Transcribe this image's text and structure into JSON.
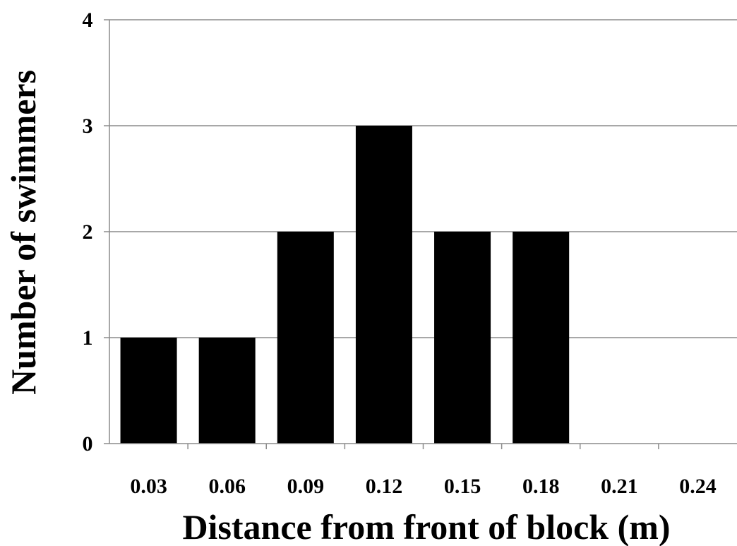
{
  "chart_data": {
    "type": "bar",
    "title": "",
    "xlabel": "Distance from front of block (m)",
    "ylabel": "Number of swimmers",
    "categories": [
      "0.03",
      "0.06",
      "0.09",
      "0.12",
      "0.15",
      "0.18",
      "0.21",
      "0.24"
    ],
    "values": [
      1,
      1,
      2,
      3,
      2,
      2,
      0,
      0
    ],
    "ylim": [
      0,
      4
    ],
    "yticks": [
      "0",
      "1",
      "2",
      "3",
      "4"
    ],
    "grid": "horizontal",
    "legend": "none",
    "bar_color": "#000000",
    "grid_color": "#8c8c8c",
    "axis_color": "#8c8c8c"
  }
}
